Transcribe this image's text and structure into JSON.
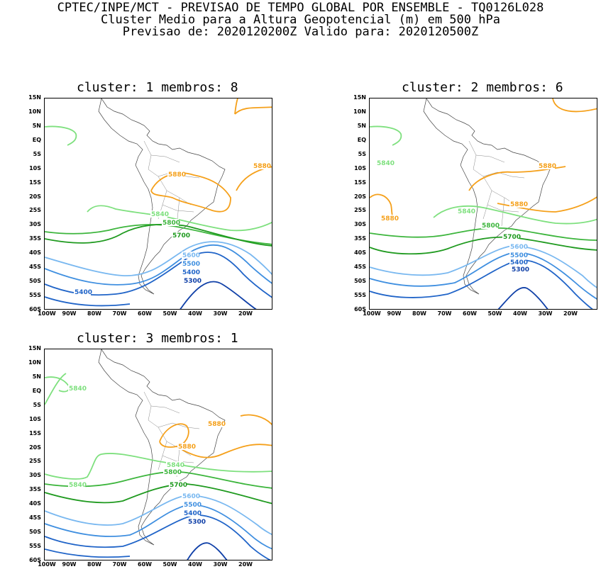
{
  "header": {
    "line1": "CPTEC/INPE/MCT - PREVISAO DE TEMPO GLOBAL POR ENSEMBLE - TQ0126L028",
    "line2": "Cluster Medio para a Altura Geopotencial (m) em 500 hPa",
    "line3": "Previsao de: 2020120200Z   Valido para: 2020120500Z"
  },
  "axes": {
    "lat_labels": [
      "15N",
      "10N",
      "5N",
      "EQ",
      "5S",
      "10S",
      "15S",
      "20S",
      "25S",
      "30S",
      "35S",
      "40S",
      "45S",
      "50S",
      "55S",
      "60S"
    ],
    "lon_labels": [
      "100W",
      "90W",
      "80W",
      "70W",
      "60W",
      "50W",
      "40W",
      "30W",
      "20W"
    ]
  },
  "colors": {
    "c5880": "#f5a01a",
    "c5840": "#7ee07e",
    "c5800": "#3cb53c",
    "c5700": "#1f9a1f",
    "c5600": "#79b8f0",
    "c5500": "#3f8fe0",
    "c5400": "#2064c8",
    "c5300": "#1040a8"
  },
  "panels": [
    {
      "title": "cluster: 1   membros: 8",
      "labels": {
        "l5880": "5880",
        "l5840": "5840",
        "l5800": "5800",
        "l5700": "5700",
        "l5600": "5600",
        "l5500": "5500",
        "l5400": "5400",
        "l5300": "5300",
        "l5880b": "5880",
        "l5400b": "5400"
      }
    },
    {
      "title": "cluster: 2   membros: 6",
      "labels": {
        "l5880": "5880",
        "l5840": "5840",
        "l5800": "5800",
        "l5700": "5700",
        "l5600": "5600",
        "l5500": "5500",
        "l5400": "5400",
        "l5300": "5300",
        "l5880b": "5880",
        "l5880c": "5880",
        "l5840b": "5840"
      }
    },
    {
      "title": "cluster: 3   membros: 1",
      "labels": {
        "l5880": "5880",
        "l5840": "5840",
        "l5800": "5800",
        "l5700": "5700",
        "l5600": "5600",
        "l5500": "5500",
        "l5400": "5400",
        "l5300": "5300",
        "l5880b": "5880",
        "l5840b": "5840",
        "l5840c": "5840"
      }
    }
  ]
}
